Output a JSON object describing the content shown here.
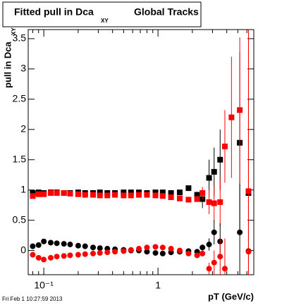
{
  "chart_data": {
    "type": "scatter",
    "title": "Fitted pull in Dca",
    "title_subscript": "XY",
    "title_suffix": "Global Tracks",
    "y_label": "pull in Dca",
    "y_label_subscript": "XY",
    "x_label": "pT (GeV/c)",
    "footer": "Fri Feb  1 10:27:59 2013",
    "xscale": "log",
    "xlim": [
      0.073,
      6.9
    ],
    "ylim": [
      -0.4,
      3.65
    ],
    "xticks": [
      {
        "value": 0.1,
        "label": "10⁻¹"
      },
      {
        "value": 1,
        "label": "1"
      }
    ],
    "xminorticks": [
      0.08,
      0.09,
      0.2,
      0.3,
      0.4,
      0.5,
      0.6,
      0.7,
      0.8,
      0.9,
      2,
      3,
      4,
      5,
      6
    ],
    "yticks": [
      0,
      0.5,
      1,
      1.5,
      2,
      2.5,
      3,
      3.5
    ],
    "x": [
      0.08,
      0.09,
      0.1,
      0.115,
      0.13,
      0.15,
      0.17,
      0.2,
      0.23,
      0.27,
      0.31,
      0.36,
      0.42,
      0.5,
      0.58,
      0.68,
      0.8,
      0.95,
      1.1,
      1.3,
      1.55,
      1.85,
      2.2,
      2.45,
      2.8,
      3.1,
      3.5,
      3.85,
      4.4,
      5.2,
      6.2
    ],
    "series": [
      {
        "color": "#000000",
        "marker": "square",
        "values": [
          0.95,
          0.96,
          0.95,
          0.96,
          0.96,
          0.95,
          0.95,
          0.96,
          0.95,
          0.95,
          0.96,
          0.95,
          0.95,
          0.96,
          0.96,
          0.96,
          0.95,
          0.96,
          0.96,
          0.95,
          0.96,
          1.03,
          0.92,
          0.85,
          1.2,
          1.3,
          1.5,
          null,
          null,
          1.78,
          0.95
        ],
        "errors": [
          0.02,
          0.02,
          0.02,
          0.02,
          0.02,
          0.02,
          0.02,
          0.02,
          0.02,
          0.02,
          0.02,
          0.02,
          0.02,
          0.02,
          0.02,
          0.02,
          0.02,
          0.02,
          0.02,
          0.02,
          0.03,
          0.04,
          0.05,
          0.15,
          0.3,
          0.4,
          0.5,
          null,
          null,
          1.5,
          3
        ]
      },
      {
        "color": "#ff0000",
        "marker": "square",
        "values": [
          0.9,
          0.93,
          0.93,
          0.95,
          0.95,
          0.95,
          0.94,
          0.93,
          0.92,
          0.92,
          0.91,
          0.91,
          0.92,
          0.91,
          0.91,
          0.92,
          0.92,
          0.91,
          0.9,
          0.88,
          0.86,
          0.84,
          0.85,
          0.95,
          0.8,
          0.78,
          0.8,
          1.72,
          2.2,
          2.32,
          0.98
        ],
        "errors": [
          0.02,
          0.02,
          0.02,
          0.02,
          0.02,
          0.02,
          0.02,
          0.02,
          0.02,
          0.02,
          0.02,
          0.02,
          0.02,
          0.02,
          0.02,
          0.02,
          0.02,
          0.02,
          0.02,
          0.02,
          0.03,
          0.04,
          0.05,
          0.1,
          0.2,
          0.3,
          0.4,
          0.6,
          1.0,
          1.2,
          3
        ]
      },
      {
        "color": "#000000",
        "marker": "circle",
        "values": [
          0.07,
          0.09,
          0.15,
          0.13,
          0.12,
          0.11,
          0.1,
          0.08,
          0.07,
          0.05,
          0.04,
          0.03,
          0.02,
          0.01,
          0,
          0,
          -0.02,
          -0.04,
          -0.05,
          -0.03,
          -0.02,
          -0.01,
          -0.02,
          0.05,
          0.1,
          0.3,
          0.15,
          null,
          null,
          0.3,
          -0.01
        ],
        "errors": [
          0.02,
          0.02,
          0.02,
          0.02,
          0.02,
          0.02,
          0.02,
          0.02,
          0.02,
          0.02,
          0.02,
          0.02,
          0.02,
          0.02,
          0.02,
          0.02,
          0.02,
          0.02,
          0.02,
          0.02,
          0.02,
          0.03,
          0.04,
          0.05,
          0.1,
          0.2,
          0.3,
          null,
          null,
          0.8,
          2.5
        ]
      },
      {
        "color": "#ff0000",
        "marker": "circle",
        "values": [
          -0.07,
          -0.12,
          -0.15,
          -0.12,
          -0.1,
          -0.09,
          -0.08,
          -0.07,
          -0.06,
          -0.05,
          -0.04,
          -0.03,
          -0.02,
          -0.01,
          0.01,
          0.03,
          0.05,
          0.06,
          0.05,
          0.03,
          0,
          -0.05,
          -0.08,
          -0.05,
          -0.3,
          -0.2,
          -0.1,
          -0.3,
          null,
          null,
          -0.02
        ],
        "errors": [
          0.02,
          0.02,
          0.02,
          0.02,
          0.02,
          0.02,
          0.02,
          0.02,
          0.02,
          0.02,
          0.02,
          0.02,
          0.02,
          0.02,
          0.02,
          0.02,
          0.02,
          0.02,
          0.02,
          0.02,
          0.02,
          0.03,
          0.04,
          0.05,
          0.1,
          0.2,
          0.3,
          0.5,
          null,
          null,
          2.5
        ]
      }
    ]
  }
}
